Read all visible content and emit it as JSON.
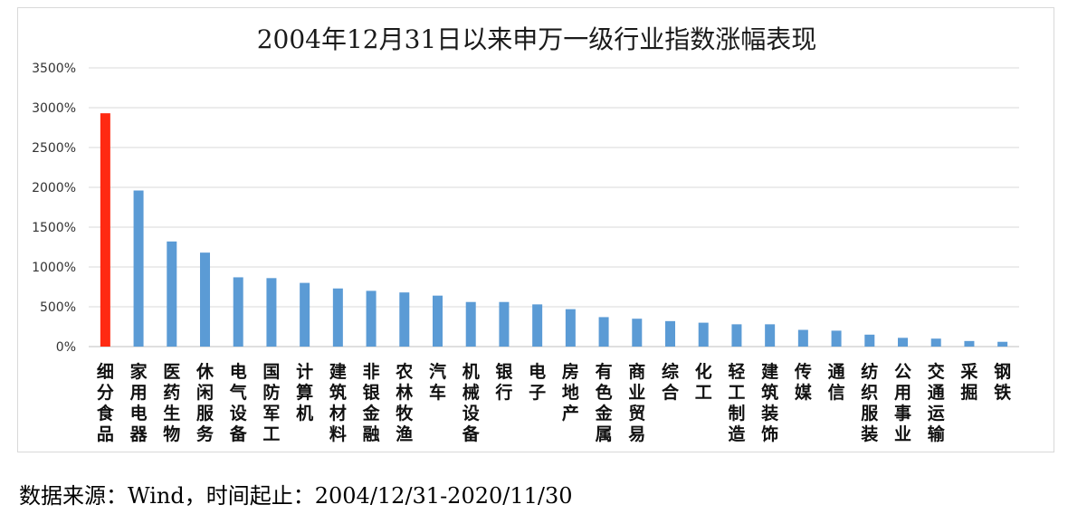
{
  "chart_data": {
    "type": "bar",
    "title": "2004年12月31日以来申万一级行业指数涨幅表现",
    "xlabel": "",
    "ylabel": "",
    "ylim": [
      0,
      3500
    ],
    "y_ticks": [
      "0%",
      "500%",
      "1000%",
      "1500%",
      "2000%",
      "2500%",
      "3000%",
      "3500%"
    ],
    "grid": true,
    "categories": [
      "细分食品",
      "家用电器",
      "医药生物",
      "休闲服务",
      "电气设备",
      "国防军工",
      "计算机",
      "建筑材料",
      "非银金融",
      "农林牧渔",
      "汽车",
      "机械设备",
      "银行",
      "电子",
      "房地产",
      "有色金属",
      "商业贸易",
      "综合",
      "化工",
      "轻工制造",
      "建筑装饰",
      "传媒",
      "通信",
      "纺织服装",
      "公用事业",
      "交通运输",
      "采掘",
      "钢铁"
    ],
    "values": [
      2930,
      1960,
      1320,
      1180,
      870,
      860,
      800,
      730,
      700,
      680,
      640,
      560,
      560,
      530,
      470,
      370,
      350,
      320,
      300,
      280,
      280,
      210,
      200,
      150,
      110,
      100,
      70,
      60
    ],
    "highlight_color": "#ff2a12",
    "bar_color": "#5b9bd5"
  },
  "source": "数据来源：Wind，时间起止：2004/12/31-2020/11/30"
}
